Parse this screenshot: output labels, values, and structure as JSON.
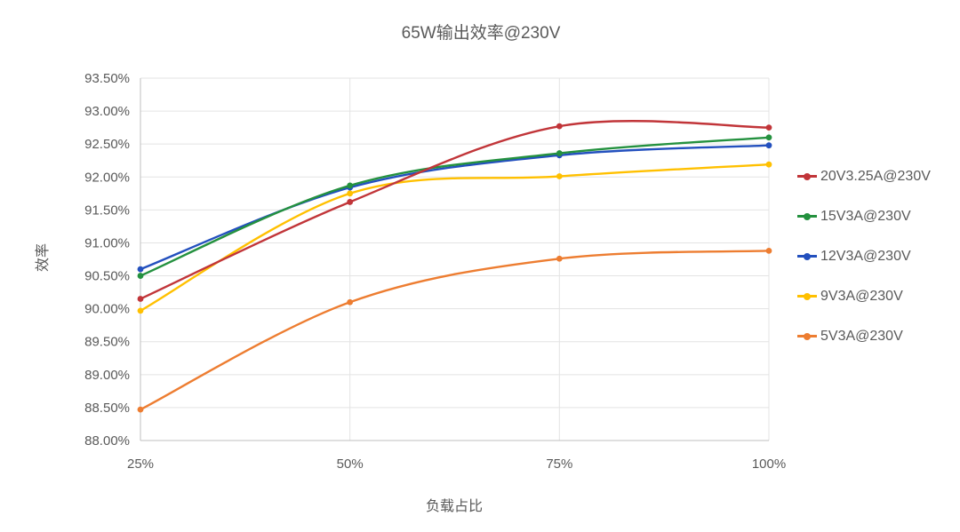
{
  "chart_data": {
    "type": "line",
    "smooth": true,
    "title": "65W输出效率@230V",
    "xlabel": "负载占比",
    "ylabel": "效率",
    "categories": [
      "25%",
      "50%",
      "75%",
      "100%"
    ],
    "series": [
      {
        "name": "20V3.25A@230V",
        "color": "#C13539",
        "values": [
          90.15,
          91.62,
          92.77,
          92.75
        ]
      },
      {
        "name": "15V3A@230V",
        "color": "#24913F",
        "values": [
          90.5,
          91.87,
          92.36,
          92.6
        ]
      },
      {
        "name": "12V3A@230V",
        "color": "#2350BE",
        "values": [
          90.6,
          91.84,
          92.33,
          92.48
        ]
      },
      {
        "name": "9V3A@230V",
        "color": "#FFC000",
        "values": [
          89.97,
          91.75,
          92.01,
          92.19
        ]
      },
      {
        "name": "5V3A@230V",
        "color": "#ED7D31",
        "values": [
          88.47,
          90.1,
          90.76,
          90.88
        ]
      }
    ],
    "ylim": [
      88.0,
      93.5
    ],
    "ytick_step": 0.5,
    "yticks": [
      "88.00%",
      "88.50%",
      "89.00%",
      "89.50%",
      "90.00%",
      "90.50%",
      "91.00%",
      "91.50%",
      "92.00%",
      "92.50%",
      "93.00%",
      "93.50%"
    ],
    "grid": true,
    "legend_position": "right",
    "colors": {
      "text": "#595959",
      "gridline": "#E3E3E3",
      "axis_line": "#BFBFBF",
      "background": "#FFFFFF"
    }
  }
}
